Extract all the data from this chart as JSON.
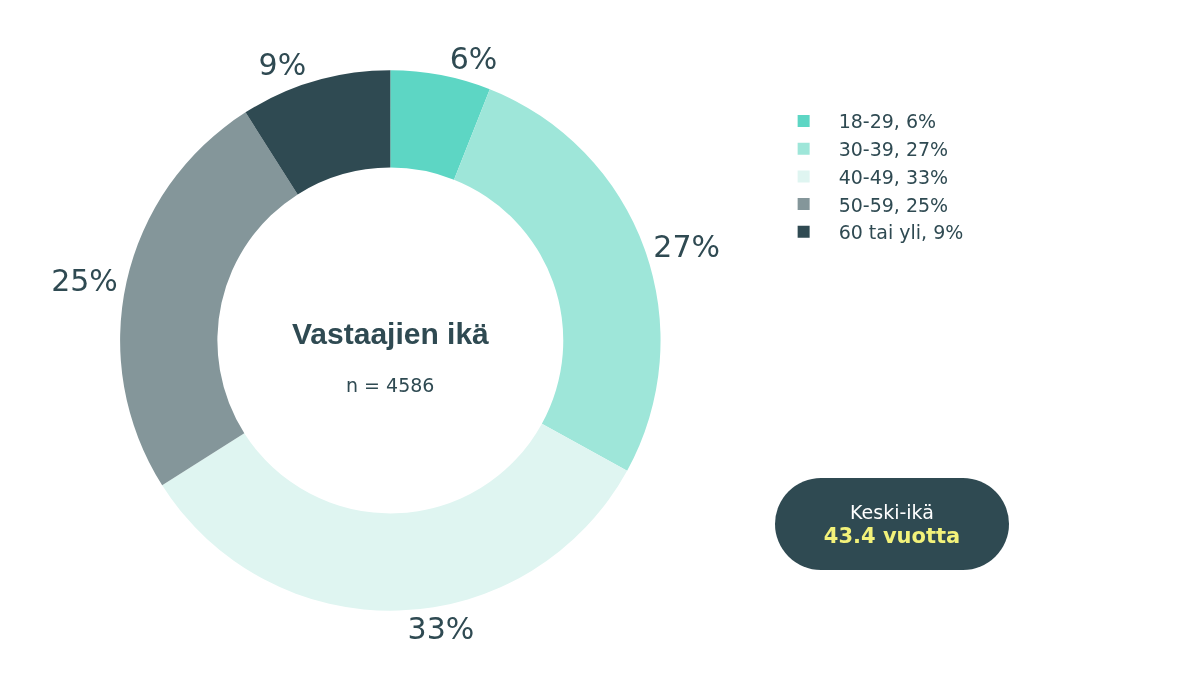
{
  "chart_data": {
    "type": "donut",
    "title": "Vastaajien ikä",
    "subtitle": "n = 4586",
    "categories": [
      "18-29, 6%",
      "30-39, 27%",
      "40-49, 33%",
      "50-59, 25%",
      "60 tai yli, 9%"
    ],
    "values": [
      6,
      27,
      33,
      25,
      9
    ],
    "colors": [
      "#5dd6c4",
      "#9ee6d9",
      "#dff5f1",
      "#84969a",
      "#2f4a52"
    ],
    "value_labels": [
      "6%",
      "27%",
      "33%",
      "25%",
      "9%"
    ],
    "legend": "right",
    "annotations": [
      "Keski-ikä",
      "43.4 vuotta"
    ]
  }
}
